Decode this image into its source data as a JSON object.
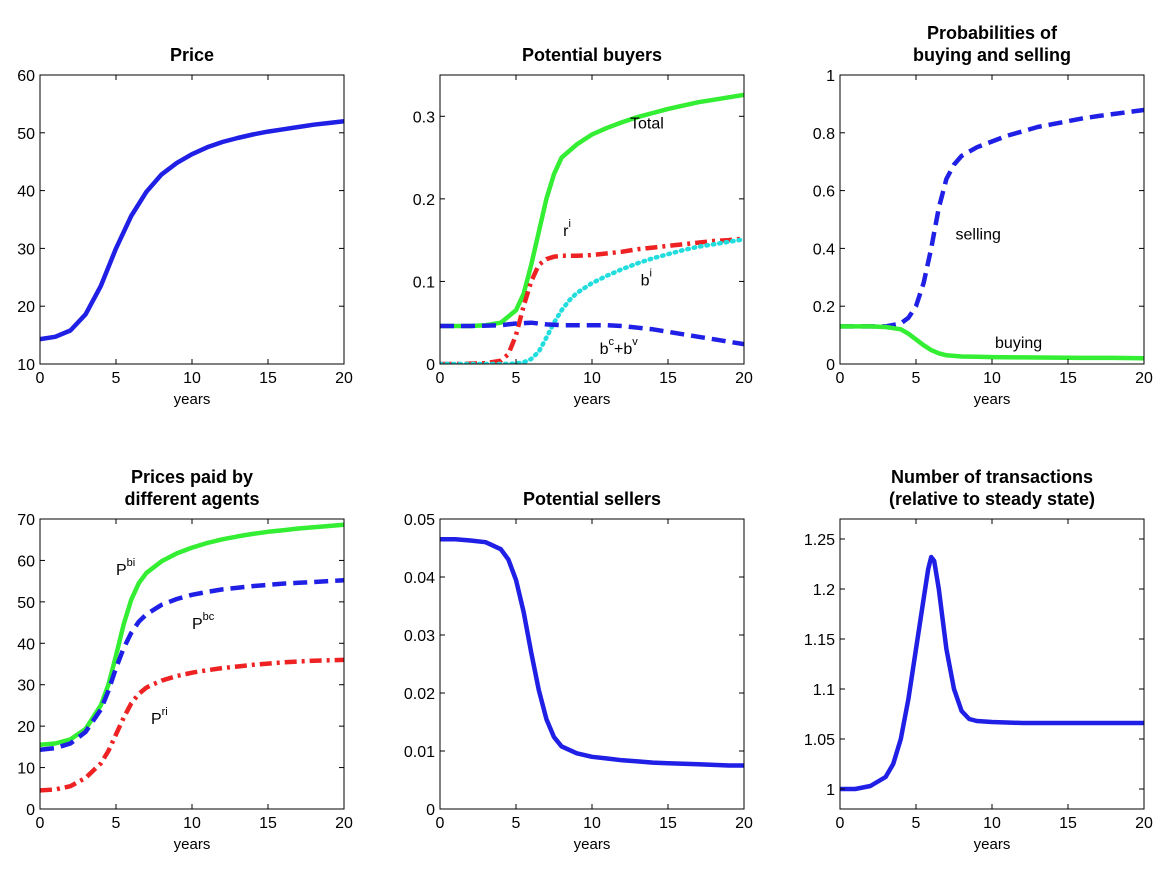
{
  "chart_data": [
    {
      "type": "line",
      "title": [
        "Price"
      ],
      "xlabel": "years",
      "xlim": [
        0,
        20
      ],
      "ylim": [
        10,
        60
      ],
      "xticks": [
        "0",
        "5",
        "10",
        "15",
        "20"
      ],
      "yticks": [
        "10",
        "20",
        "30",
        "40",
        "50",
        "60"
      ],
      "grid": false,
      "annotations": [],
      "series": [
        {
          "color": "#1f1fe6",
          "style": "solid",
          "x": [
            0,
            1,
            2,
            3,
            4,
            5,
            6,
            7,
            8,
            9,
            10,
            11,
            12,
            13,
            14,
            15,
            16,
            17,
            18,
            19,
            20
          ],
          "y": [
            14.3,
            14.7,
            15.8,
            18.6,
            23.5,
            30.0,
            35.6,
            39.8,
            42.8,
            44.8,
            46.3,
            47.5,
            48.4,
            49.1,
            49.7,
            50.2,
            50.6,
            51.0,
            51.4,
            51.7,
            52.0
          ]
        }
      ]
    },
    {
      "type": "line",
      "title": [
        "Potential buyers"
      ],
      "xlabel": "years",
      "xlim": [
        0,
        20
      ],
      "ylim": [
        0,
        0.35
      ],
      "xticks": [
        "0",
        "5",
        "10",
        "15",
        "20"
      ],
      "yticks": [
        "0",
        "0.1",
        "0.2",
        "0.3"
      ],
      "grid": false,
      "annotations": [
        {
          "text": "Total",
          "sup": "",
          "x": 12.5,
          "y": 0.285
        },
        {
          "text": "r",
          "sup": "i",
          "x": 8.1,
          "y": 0.155
        },
        {
          "text": "b",
          "sup": "i",
          "x": 13.2,
          "y": 0.095
        },
        {
          "text": "b",
          "sup": "c",
          "text2": "+b",
          "sup2": "v",
          "x": 10.5,
          "y": 0.012
        }
      ],
      "series": [
        {
          "color": "#33ee33",
          "style": "solid",
          "x": [
            0,
            1,
            2,
            3,
            4,
            5,
            5.5,
            6,
            6.5,
            7,
            7.5,
            8,
            9,
            10,
            11,
            12,
            13,
            14,
            15,
            16,
            17,
            18,
            19,
            20
          ],
          "y": [
            0.046,
            0.046,
            0.046,
            0.047,
            0.05,
            0.065,
            0.085,
            0.12,
            0.16,
            0.2,
            0.23,
            0.25,
            0.266,
            0.278,
            0.286,
            0.293,
            0.299,
            0.304,
            0.309,
            0.313,
            0.317,
            0.32,
            0.323,
            0.326
          ]
        },
        {
          "color": "#ee2222",
          "style": "dashdot",
          "x": [
            0,
            1,
            2,
            3,
            4,
            4.5,
            5,
            5.5,
            6,
            6.5,
            7,
            7.5,
            8,
            9,
            10,
            11,
            12,
            13,
            14,
            15,
            16,
            17,
            18,
            19,
            20
          ],
          "y": [
            0.0,
            0.0,
            0.0005,
            0.001,
            0.004,
            0.012,
            0.035,
            0.07,
            0.1,
            0.12,
            0.127,
            0.13,
            0.131,
            0.131,
            0.132,
            0.134,
            0.136,
            0.139,
            0.141,
            0.143,
            0.145,
            0.147,
            0.149,
            0.15,
            0.152
          ]
        },
        {
          "color": "#22dddd",
          "style": "dotted",
          "x": [
            0,
            2,
            4,
            5,
            5.5,
            6,
            6.5,
            7,
            7.5,
            8,
            8.5,
            9,
            10,
            11,
            12,
            13,
            14,
            15,
            16,
            17,
            18,
            19,
            20
          ],
          "y": [
            0.0,
            0.0,
            0.0,
            0.0005,
            0.002,
            0.006,
            0.015,
            0.032,
            0.05,
            0.065,
            0.077,
            0.086,
            0.098,
            0.107,
            0.115,
            0.122,
            0.128,
            0.133,
            0.138,
            0.142,
            0.145,
            0.148,
            0.151
          ]
        },
        {
          "color": "#1f1fe6",
          "style": "dashed",
          "x": [
            0,
            2,
            4,
            5,
            6,
            7,
            8,
            9,
            10,
            11,
            12,
            13,
            14,
            15,
            16,
            17,
            18,
            19,
            20
          ],
          "y": [
            0.046,
            0.046,
            0.047,
            0.049,
            0.05,
            0.048,
            0.047,
            0.047,
            0.047,
            0.047,
            0.046,
            0.044,
            0.042,
            0.039,
            0.036,
            0.033,
            0.03,
            0.027,
            0.024
          ]
        }
      ]
    },
    {
      "type": "line",
      "title": [
        "Probabilities of",
        "buying and selling"
      ],
      "xlabel": "years",
      "xlim": [
        0,
        20
      ],
      "ylim": [
        0,
        1
      ],
      "xticks": [
        "0",
        "5",
        "10",
        "15",
        "20"
      ],
      "yticks": [
        "0",
        "0.2",
        "0.4",
        "0.6",
        "0.8",
        "1"
      ],
      "grid": false,
      "annotations": [
        {
          "text": "selling",
          "sup": "",
          "x": 7.6,
          "y": 0.43
        },
        {
          "text": "buying",
          "sup": "",
          "x": 10.2,
          "y": 0.055
        }
      ],
      "series": [
        {
          "color": "#1f1fe6",
          "style": "dashed",
          "x": [
            0,
            1,
            2,
            3,
            4,
            4.5,
            5,
            5.5,
            6,
            6.5,
            7,
            7.5,
            8,
            9,
            10,
            11,
            12,
            13,
            14,
            15,
            16,
            17,
            18,
            19,
            20
          ],
          "y": [
            0.13,
            0.13,
            0.13,
            0.13,
            0.14,
            0.16,
            0.2,
            0.28,
            0.4,
            0.54,
            0.64,
            0.69,
            0.72,
            0.75,
            0.77,
            0.79,
            0.805,
            0.82,
            0.83,
            0.84,
            0.85,
            0.858,
            0.865,
            0.872,
            0.879
          ]
        },
        {
          "color": "#33ee33",
          "style": "solid",
          "x": [
            0,
            1,
            2,
            3,
            4,
            4.5,
            5,
            5.5,
            6,
            6.5,
            7,
            8,
            9,
            10,
            12,
            14,
            16,
            18,
            20
          ],
          "y": [
            0.13,
            0.13,
            0.13,
            0.128,
            0.12,
            0.105,
            0.085,
            0.065,
            0.048,
            0.037,
            0.03,
            0.026,
            0.025,
            0.024,
            0.023,
            0.022,
            0.021,
            0.021,
            0.02
          ]
        }
      ]
    },
    {
      "type": "line",
      "title": [
        "Prices paid by",
        "different agents"
      ],
      "xlabel": "years",
      "xlim": [
        0,
        20
      ],
      "ylim": [
        0,
        70
      ],
      "xticks": [
        "0",
        "5",
        "10",
        "15",
        "20"
      ],
      "yticks": [
        "0",
        "10",
        "20",
        "30",
        "40",
        "50",
        "60",
        "70"
      ],
      "grid": false,
      "annotations": [
        {
          "text": "P",
          "sup": "bi",
          "x": 5.0,
          "y": 56.5
        },
        {
          "text": "P",
          "sup": "bc",
          "x": 10.0,
          "y": 43.5
        },
        {
          "text": "P",
          "sup": "ri",
          "x": 7.3,
          "y": 20.5
        }
      ],
      "series": [
        {
          "color": "#33ee33",
          "style": "solid",
          "x": [
            0,
            1,
            2,
            3,
            4,
            4.5,
            5,
            5.5,
            6,
            6.5,
            7,
            8,
            9,
            10,
            11,
            12,
            13,
            14,
            15,
            16,
            17,
            18,
            19,
            20
          ],
          "y": [
            15.5,
            15.8,
            16.8,
            19.3,
            25.0,
            30.0,
            37.0,
            44.5,
            50.5,
            54.5,
            57.0,
            59.8,
            61.7,
            63.1,
            64.2,
            65.1,
            65.8,
            66.4,
            66.9,
            67.3,
            67.7,
            68.0,
            68.3,
            68.6
          ]
        },
        {
          "color": "#1f1fe6",
          "style": "dashed",
          "x": [
            0,
            1,
            2,
            3,
            4,
            4.5,
            5,
            5.5,
            6,
            6.5,
            7,
            8,
            9,
            10,
            11,
            12,
            13,
            14,
            15,
            16,
            17,
            18,
            19,
            20
          ],
          "y": [
            14.3,
            14.7,
            15.8,
            18.6,
            24.0,
            28.5,
            34.0,
            38.8,
            42.5,
            45.2,
            47.0,
            49.3,
            50.7,
            51.7,
            52.4,
            53.0,
            53.4,
            53.8,
            54.1,
            54.4,
            54.6,
            54.8,
            55.0,
            55.2
          ]
        },
        {
          "color": "#ee2222",
          "style": "dashdot",
          "x": [
            0,
            1,
            2,
            3,
            4,
            4.5,
            5,
            5.5,
            6,
            6.5,
            7,
            7.5,
            8,
            9,
            10,
            11,
            12,
            13,
            14,
            15,
            16,
            17,
            18,
            19,
            20
          ],
          "y": [
            4.5,
            4.7,
            5.5,
            7.5,
            11.0,
            14.0,
            18.0,
            22.0,
            25.5,
            27.8,
            29.3,
            30.2,
            31.0,
            32.1,
            32.9,
            33.5,
            34.0,
            34.4,
            34.8,
            35.1,
            35.4,
            35.6,
            35.8,
            35.9,
            36.0
          ]
        }
      ]
    },
    {
      "type": "line",
      "title": [
        "Potential sellers"
      ],
      "xlabel": "years",
      "xlim": [
        0,
        20
      ],
      "ylim": [
        0,
        0.05
      ],
      "xticks": [
        "0",
        "5",
        "10",
        "15",
        "20"
      ],
      "yticks": [
        "0",
        "0.01",
        "0.02",
        "0.03",
        "0.04",
        "0.05"
      ],
      "grid": false,
      "annotations": [],
      "series": [
        {
          "color": "#1f1fe6",
          "style": "solid",
          "x": [
            0,
            1,
            2,
            3,
            4,
            4.5,
            5,
            5.5,
            6,
            6.5,
            7,
            7.5,
            8,
            9,
            10,
            11,
            12,
            13,
            14,
            15,
            16,
            17,
            18,
            19,
            20
          ],
          "y": [
            0.0465,
            0.0465,
            0.0463,
            0.046,
            0.0448,
            0.043,
            0.0395,
            0.034,
            0.027,
            0.0205,
            0.0155,
            0.0124,
            0.0108,
            0.0096,
            0.009,
            0.0087,
            0.0084,
            0.0082,
            0.008,
            0.0079,
            0.0078,
            0.0077,
            0.0076,
            0.0075,
            0.0075
          ]
        }
      ]
    },
    {
      "type": "line",
      "title": [
        "Number of transactions",
        "(relative to steady state)"
      ],
      "xlabel": "years",
      "xlim": [
        0,
        20
      ],
      "ylim": [
        0.98,
        1.27
      ],
      "xticks": [
        "0",
        "5",
        "10",
        "15",
        "20"
      ],
      "yticks": [
        "1",
        "1.05",
        "1.1",
        "1.15",
        "1.2",
        "1.25"
      ],
      "grid": false,
      "annotations": [],
      "series": [
        {
          "color": "#1f1fe6",
          "style": "solid",
          "x": [
            0,
            1,
            2,
            3,
            3.5,
            4,
            4.5,
            5,
            5.5,
            5.8,
            6,
            6.2,
            6.5,
            7,
            7.5,
            8,
            8.5,
            9,
            10,
            12,
            14,
            16,
            18,
            20
          ],
          "y": [
            1.0,
            1.0,
            1.003,
            1.012,
            1.025,
            1.05,
            1.09,
            1.14,
            1.19,
            1.22,
            1.232,
            1.228,
            1.2,
            1.14,
            1.1,
            1.078,
            1.07,
            1.068,
            1.067,
            1.066,
            1.066,
            1.066,
            1.066,
            1.066
          ]
        }
      ]
    }
  ]
}
